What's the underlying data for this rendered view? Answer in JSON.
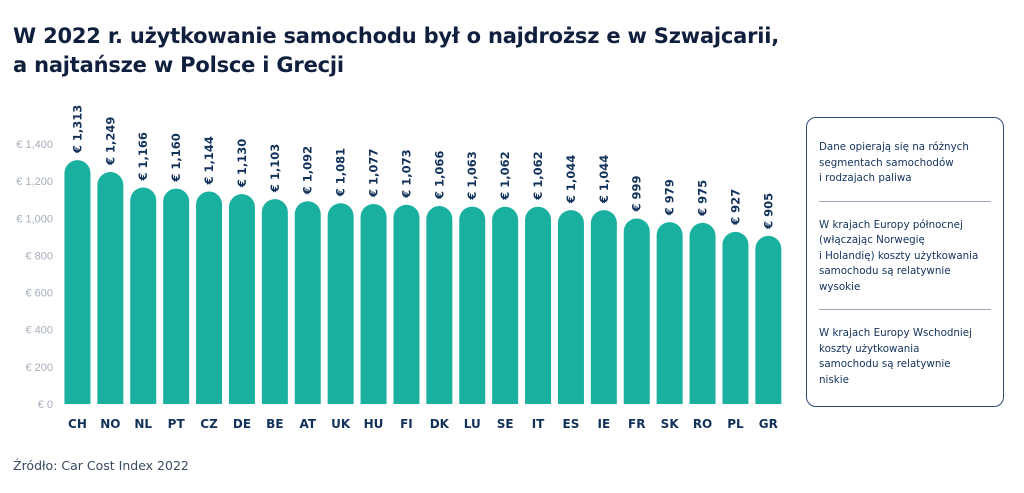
{
  "title": {
    "line1": "W 2022 r. użytkowanie samochodu był o najdroższ e w Szwajcarii,",
    "line2": "a najtańsze w Polsce i Grecji"
  },
  "colors": {
    "bar": "#1ab0a0",
    "text": "#13325b",
    "axis": "#a5adba"
  },
  "chart_data": {
    "type": "bar",
    "categories": [
      "CH",
      "NO",
      "NL",
      "PT",
      "CZ",
      "DE",
      "BE",
      "AT",
      "UK",
      "HU",
      "FI",
      "DK",
      "LU",
      "SE",
      "IT",
      "ES",
      "IE",
      "FR",
      "SK",
      "RO",
      "PL",
      "GR"
    ],
    "values": [
      1313,
      1249,
      1166,
      1160,
      1144,
      1130,
      1103,
      1092,
      1081,
      1077,
      1073,
      1066,
      1063,
      1062,
      1062,
      1044,
      1044,
      999,
      979,
      975,
      927,
      905
    ],
    "value_labels": [
      "€ 1,313",
      "€ 1,249",
      "€ 1,166",
      "€ 1,160",
      "€ 1,144",
      "€ 1,130",
      "€ 1,103",
      "€ 1,092",
      "€ 1,081",
      "€ 1,077",
      "€ 1,073",
      "€ 1,066",
      "€ 1,063",
      "€ 1,062",
      "€ 1,062",
      "€ 1,044",
      "€ 1,044",
      "€ 999",
      "€ 979",
      "€ 975",
      "€ 927",
      "€ 905"
    ],
    "ytick_values": [
      0,
      200,
      400,
      600,
      800,
      1000,
      1200,
      1400
    ],
    "ytick_labels": [
      "€ 0",
      "€ 200",
      "€ 400",
      "€ 600",
      "€ 800",
      "€ 1,000",
      "€ 1,200",
      "€ 1,400"
    ],
    "ylim": [
      0,
      1400
    ],
    "grid": false
  },
  "notes": [
    "Dane opierają się na różnych\nsegmentach samochodów\ni rodzajach paliwa",
    "W krajach Europy północnej\n(włączając Norwegię\ni Holandię) koszty użytkowania\nsamochodu są relatywnie\nwysokie",
    "W krajach Europy Wschodniej\nkoszty użytkowania\nsamochodu są relatywnie\nniskie"
  ],
  "source": "Źródło: Car Cost Index 2022"
}
